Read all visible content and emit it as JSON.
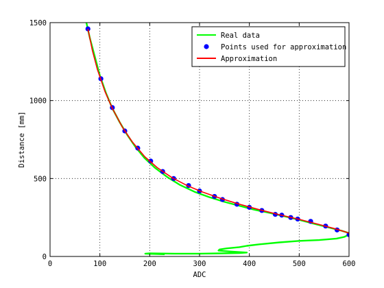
{
  "chart_data": {
    "type": "line",
    "xlabel": "ADC",
    "ylabel": "Distance [mm]",
    "xlim": [
      0,
      600
    ],
    "ylim": [
      0,
      1500
    ],
    "xticks": [
      0,
      100,
      200,
      300,
      400,
      500,
      600
    ],
    "yticks": [
      0,
      500,
      1000,
      1500
    ],
    "grid": true,
    "legend_position": "top-right",
    "series": [
      {
        "name": "Real data",
        "style": "line",
        "color": "#00ff00",
        "x": [
          73,
          80,
          90,
          100,
          112,
          125,
          140,
          155,
          172,
          190,
          210,
          235,
          260,
          290,
          320,
          350,
          380,
          410,
          440,
          470,
          500,
          530,
          560,
          585,
          598,
          600,
          590,
          575,
          540,
          500,
          460,
          420,
          395,
          380,
          355,
          340,
          338,
          360,
          395,
          380,
          340,
          300,
          250,
          200,
          191,
          230
        ],
        "y": [
          1500,
          1400,
          1280,
          1160,
          1050,
          950,
          860,
          780,
          700,
          630,
          570,
          510,
          460,
          415,
          380,
          350,
          325,
          300,
          280,
          258,
          235,
          210,
          185,
          165,
          152,
          140,
          125,
          115,
          105,
          100,
          90,
          78,
          68,
          60,
          52,
          45,
          38,
          32,
          25,
          22,
          20,
          18,
          18,
          20,
          18,
          14
        ]
      },
      {
        "name": "Points used for approximation",
        "style": "markers",
        "color": "#0000ff",
        "x": [
          76,
          102,
          125,
          150,
          176,
          202,
          226,
          248,
          278,
          300,
          330,
          346,
          375,
          400,
          425,
          452,
          465,
          483,
          497,
          523,
          553,
          576,
          600
        ],
        "y": [
          1460,
          1140,
          955,
          805,
          695,
          612,
          545,
          500,
          455,
          420,
          385,
          365,
          335,
          315,
          295,
          270,
          265,
          250,
          240,
          225,
          195,
          170,
          140
        ]
      },
      {
        "name": "Approximation",
        "style": "line",
        "color": "#ff0000",
        "x": [
          76,
          85,
          95,
          110,
          125,
          145,
          165,
          190,
          215,
          245,
          275,
          305,
          340,
          380,
          420,
          460,
          500,
          540,
          575,
          600
        ],
        "y": [
          1460,
          1320,
          1200,
          1060,
          950,
          830,
          735,
          640,
          570,
          505,
          455,
          415,
          375,
          335,
          300,
          268,
          238,
          205,
          175,
          150
        ]
      }
    ]
  }
}
